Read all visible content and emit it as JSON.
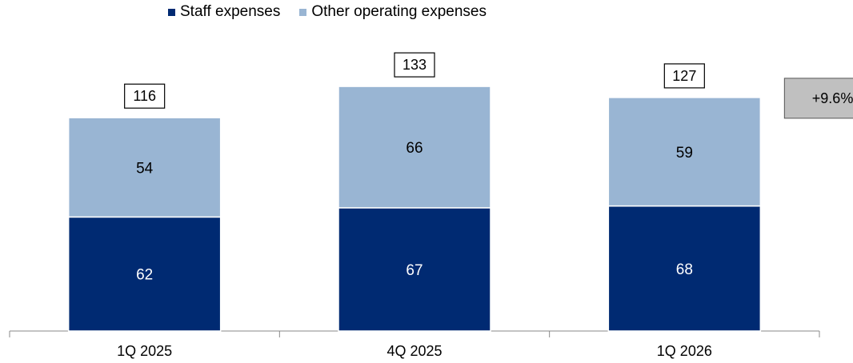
{
  "chart_data": {
    "type": "bar",
    "stacked": true,
    "categories": [
      "1Q 2025",
      "4Q 2025",
      "1Q 2026"
    ],
    "series": [
      {
        "name": "Staff expenses",
        "values": [
          62,
          67,
          68
        ],
        "color": "#002A72"
      },
      {
        "name": "Other operating expenses",
        "values": [
          54,
          66,
          59
        ],
        "color": "#99B5D3"
      }
    ],
    "totals": [
      "116",
      "133",
      "127"
    ],
    "change_annotation": "+9.6%",
    "legend_position": "top",
    "grid": false,
    "ylim": [
      0,
      140
    ]
  }
}
